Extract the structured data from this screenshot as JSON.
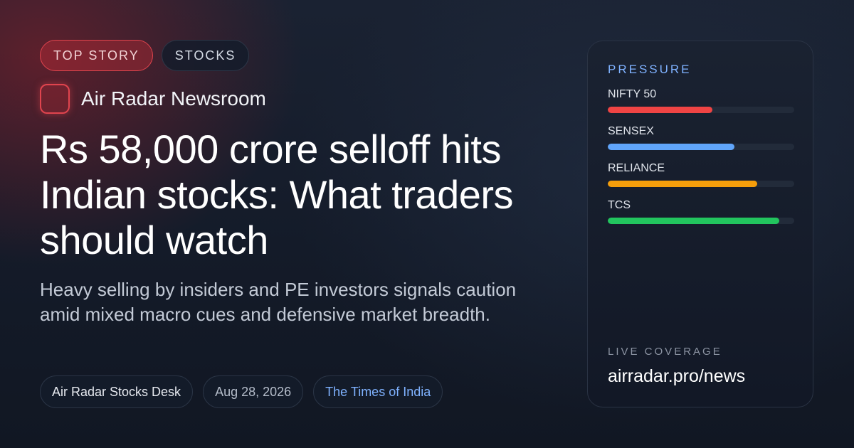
{
  "tags": {
    "primary": "TOP STORY",
    "secondary": "STOCKS"
  },
  "brand": {
    "name": "Air Radar Newsroom"
  },
  "headline": "Rs 58,000 crore selloff hits Indian stocks: What traders should watch",
  "dek": "Heavy selling by insiders and PE investors signals caution amid mixed macro cues and defensive market breadth.",
  "meta": {
    "desk": "Air Radar Stocks Desk",
    "date": "Aug 28, 2026",
    "source": "The Times of India"
  },
  "panel": {
    "title": "PRESSURE",
    "metrics": [
      {
        "label": "NIFTY 50",
        "value": 0.56,
        "color": "#ef4444"
      },
      {
        "label": "SENSEX",
        "value": 0.68,
        "color": "#60a5fa"
      },
      {
        "label": "RELIANCE",
        "value": 0.8,
        "color": "#f59e0b"
      },
      {
        "label": "TCS",
        "value": 0.92,
        "color": "#22c55e"
      }
    ],
    "live_label": "LIVE COVERAGE",
    "live_url": "airradar.pro/news"
  }
}
